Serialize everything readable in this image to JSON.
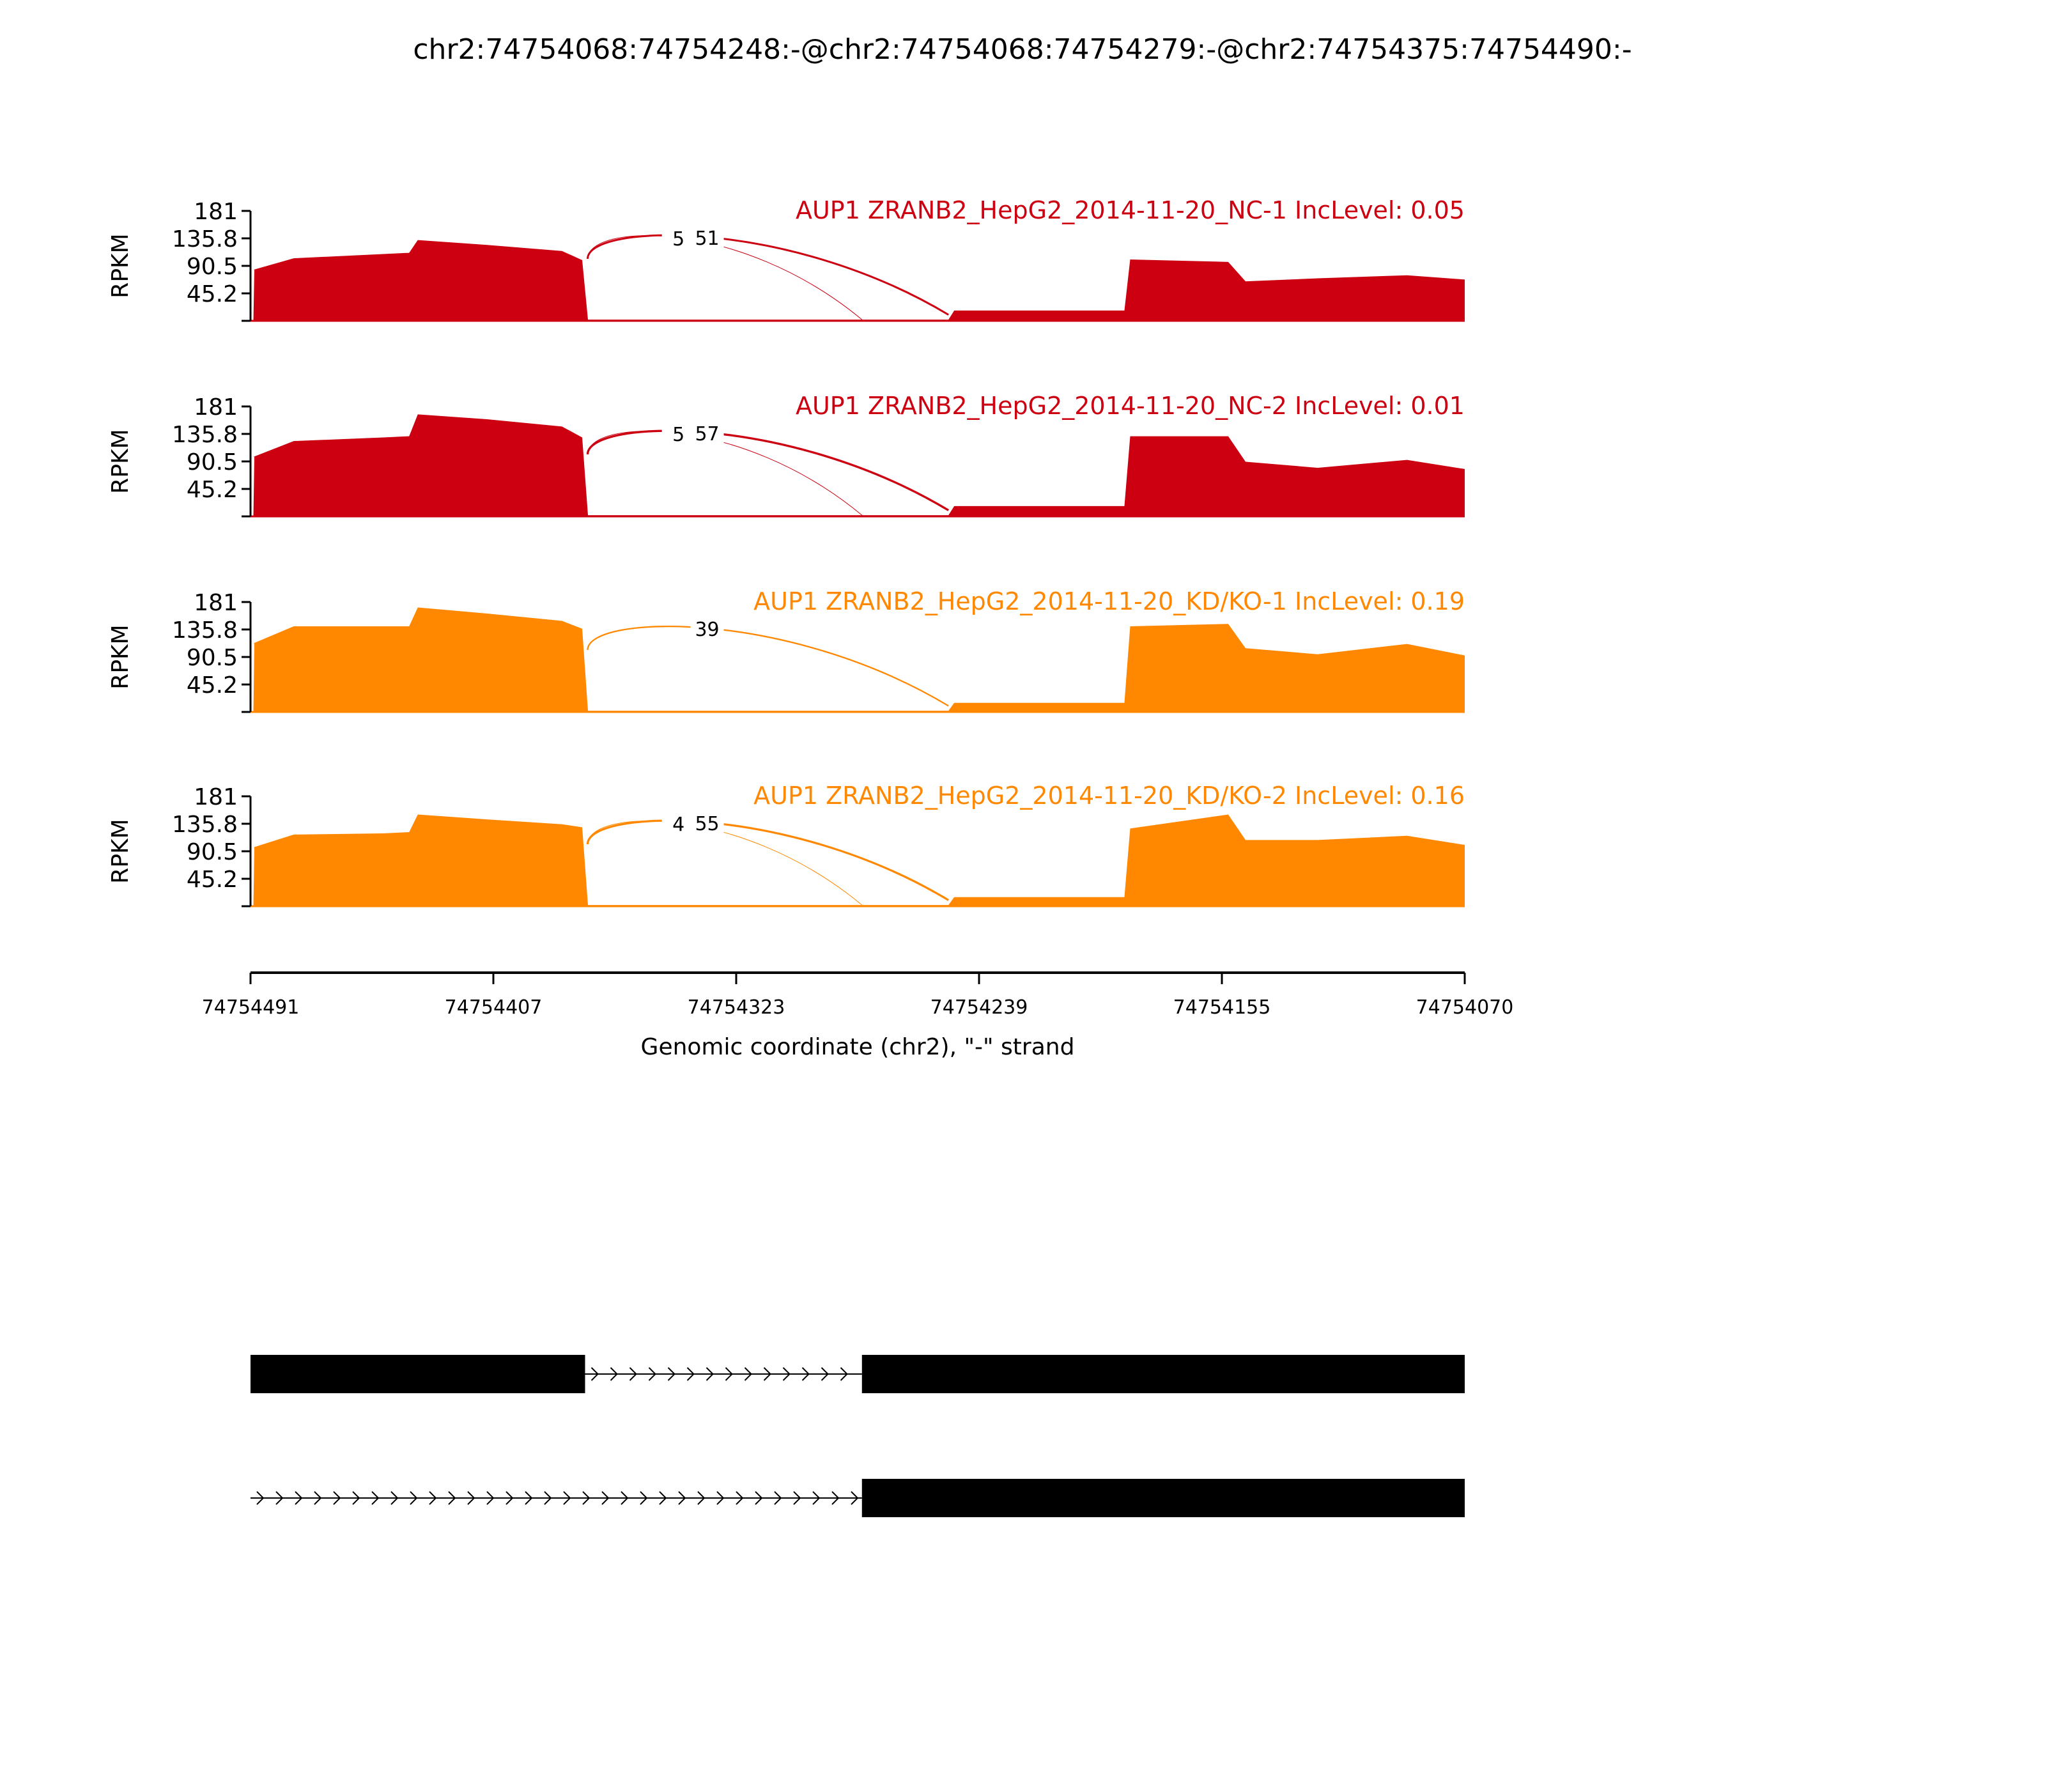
{
  "chart_data": {
    "type": "area",
    "title": "chr2:74754068:74754248:-@chr2:74754068:74754279:-@chr2:74754375:74754490:-",
    "xlabel": "Genomic coordinate (chr2), \"-\" strand",
    "ylabel": "RPKM",
    "xlim": [
      74754491,
      74754070
    ],
    "ylim": [
      0,
      181
    ],
    "x_ticks": [
      "74754491",
      "74754407",
      "74754323",
      "74754239",
      "74754155",
      "74754070"
    ],
    "y_ticks": [
      "181",
      "135.8",
      "90.5",
      "45.2"
    ],
    "x": [
      74754490,
      74754476,
      74754445,
      74754436,
      74754433,
      74754409,
      74754383,
      74754376,
      74754374,
      74754249,
      74754247,
      74754188,
      74754186,
      74754152,
      74754146,
      74754121,
      74754090,
      74754070
    ],
    "series": [
      {
        "name": "AUP1 ZRANB2_HepG2_2014-11-20_NC-1 IncLevel: 0.05",
        "color": "#cc0011",
        "values": [
          84,
          103,
          110,
          112,
          133,
          125,
          115,
          100,
          2,
          2,
          17,
          17,
          101,
          97,
          65,
          70,
          75,
          68
        ],
        "junctions": [
          {
            "start": 74754375,
            "end": 74754279,
            "count": "5"
          },
          {
            "start": 74754375,
            "end": 74754249,
            "count": "51"
          }
        ]
      },
      {
        "name": "AUP1 ZRANB2_HepG2_2014-11-20_NC-2 IncLevel: 0.01",
        "color": "#cc0011",
        "values": [
          98,
          124,
          130,
          132,
          168,
          160,
          148,
          130,
          2,
          2,
          17,
          17,
          132,
          132,
          90,
          80,
          93,
          78
        ],
        "junctions": [
          {
            "start": 74754375,
            "end": 74754279,
            "count": "5"
          },
          {
            "start": 74754375,
            "end": 74754249,
            "count": "57"
          }
        ]
      },
      {
        "name": "AUP1 ZRANB2_HepG2_2014-11-20_KD/KO-1 IncLevel: 0.19",
        "color": "#ff8800",
        "values": [
          113,
          141,
          141,
          141,
          172,
          162,
          150,
          137,
          2,
          2,
          15,
          15,
          141,
          145,
          105,
          95,
          112,
          93
        ],
        "junctions": [
          {
            "start": 74754375,
            "end": 74754249,
            "count": "39"
          }
        ]
      },
      {
        "name": "AUP1 ZRANB2_HepG2_2014-11-20_KD/KO-2 IncLevel: 0.16",
        "color": "#ff8800",
        "values": [
          97,
          118,
          120,
          122,
          151,
          143,
          135,
          130,
          2,
          2,
          15,
          15,
          128,
          151,
          109,
          109,
          116,
          101
        ],
        "junctions": [
          {
            "start": 74754375,
            "end": 74754279,
            "count": "4"
          },
          {
            "start": 74754375,
            "end": 74754249,
            "count": "55"
          }
        ]
      }
    ],
    "isoforms": [
      {
        "exons": [
          [
            74754491,
            74754375
          ],
          [
            74754279,
            74754070
          ]
        ]
      },
      {
        "exons": [
          [
            74754279,
            74754070
          ]
        ]
      }
    ]
  }
}
